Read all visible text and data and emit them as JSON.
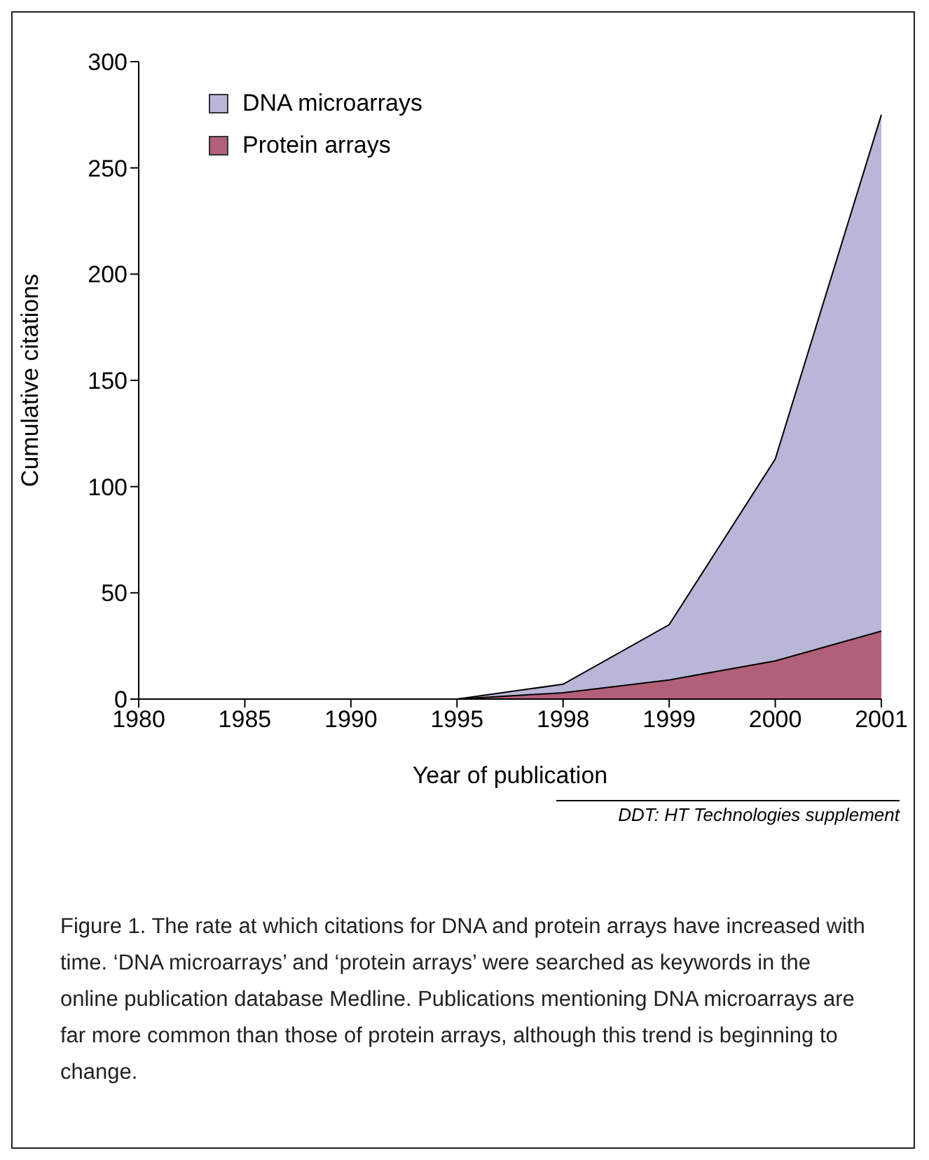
{
  "chart_data": {
    "type": "area",
    "xlabel": "Year of publication",
    "ylabel": "Cumulative citations",
    "categories": [
      "1980",
      "1985",
      "1990",
      "1995",
      "1998",
      "1999",
      "2000",
      "2001"
    ],
    "series": [
      {
        "name": "DNA microarrays",
        "color": "#b9b6d8",
        "values": [
          0,
          0,
          0,
          0,
          7,
          35,
          113,
          275
        ]
      },
      {
        "name": "Protein arrays",
        "color": "#b2607a",
        "values": [
          0,
          0,
          0,
          0,
          3,
          9,
          18,
          32
        ]
      }
    ],
    "ylim": [
      0,
      300
    ],
    "yticks": [
      0,
      50,
      100,
      150,
      200,
      250,
      300
    ],
    "grid": false,
    "legend": "top left",
    "annotations": [
      "DDT: HT Technologies supplement",
      "Figure 1. The rate at which citations for DNA and protein arrays have increased with time. ‘DNA microarrays’ and ‘protein arrays’ were searched as keywords in the online publication database Medline. Publications mentioning DNA microarrays are far more common than those of protein arrays, although this trend is beginning to change."
    ]
  }
}
